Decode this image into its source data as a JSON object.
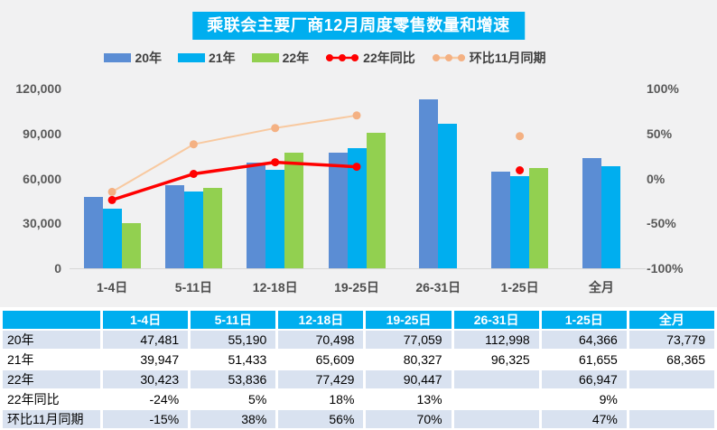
{
  "title": "乘联会主要厂商12月周度零售数量和增速",
  "colors": {
    "chart_bg": "#F1F1F2",
    "blue": "#5B8DD4",
    "cyan": "#00AEEF",
    "green": "#92D050",
    "red": "#FF0000",
    "peach_line": "#F8C9A0",
    "peach_marker": "#F4B183",
    "header_bg": "#00AEEF",
    "stripe": "#D9E2F0",
    "axis_text": "#595959"
  },
  "chart_data": {
    "type": "combo-bar-line",
    "title": "乘联会主要厂商12月周度零售数量和增速",
    "categories": [
      "1-4日",
      "5-11日",
      "12-18日",
      "19-25日",
      "26-31日",
      "1-25日",
      "全月"
    ],
    "bar_series": [
      {
        "name": "20年",
        "color": "blue",
        "values": [
          47481,
          55190,
          70498,
          77059,
          112998,
          64366,
          73779
        ]
      },
      {
        "name": "21年",
        "color": "cyan",
        "values": [
          39947,
          51433,
          65609,
          80327,
          96325,
          61655,
          68365
        ]
      },
      {
        "name": "22年",
        "color": "green",
        "values": [
          30423,
          53836,
          77429,
          90447,
          null,
          66947,
          null
        ]
      }
    ],
    "line_series": [
      {
        "name": "22年同比",
        "color": "red",
        "axis": "percent",
        "values_pct": [
          -24,
          5,
          18,
          13,
          null,
          9,
          null
        ]
      },
      {
        "name": "环比11月同期",
        "color": "peach",
        "axis": "percent",
        "values_pct": [
          -15,
          38,
          56,
          70,
          null,
          47,
          null
        ]
      }
    ],
    "left_axis": {
      "min": 0,
      "max": 120000,
      "ticks": [
        {
          "v": 0,
          "label": "0"
        },
        {
          "v": 30000,
          "label": "30,000"
        },
        {
          "v": 60000,
          "label": "60,000"
        },
        {
          "v": 90000,
          "label": "90,000"
        },
        {
          "v": 120000,
          "label": "120,000"
        }
      ]
    },
    "right_axis": {
      "min": -100,
      "max": 100,
      "ticks": [
        {
          "v": -100,
          "label": "-100%"
        },
        {
          "v": -50,
          "label": "-50%"
        },
        {
          "v": 0,
          "label": "0%"
        },
        {
          "v": 50,
          "label": "50%"
        },
        {
          "v": 100,
          "label": "100%"
        }
      ]
    },
    "legend": [
      {
        "label": "20年",
        "type": "bar",
        "color": "blue"
      },
      {
        "label": "21年",
        "type": "bar",
        "color": "cyan"
      },
      {
        "label": "22年",
        "type": "bar",
        "color": "green"
      },
      {
        "label": "22年同比",
        "type": "line",
        "color": "red"
      },
      {
        "label": "环比11月同期",
        "type": "line",
        "color": "peach"
      }
    ],
    "legend_position": "top",
    "grid": false
  },
  "table": {
    "header": [
      "",
      "1-4日",
      "5-11日",
      "12-18日",
      "19-25日",
      "26-31日",
      "1-25日",
      "全月"
    ],
    "rows": [
      {
        "label": "20年",
        "values": [
          "47,481",
          "55,190",
          "70,498",
          "77,059",
          "112,998",
          "64,366",
          "73,779"
        ]
      },
      {
        "label": "21年",
        "values": [
          "39,947",
          "51,433",
          "65,609",
          "80,327",
          "96,325",
          "61,655",
          "68,365"
        ]
      },
      {
        "label": "22年",
        "values": [
          "30,423",
          "53,836",
          "77,429",
          "90,447",
          "",
          "66,947",
          ""
        ]
      },
      {
        "label": "22年同比",
        "values": [
          "-24%",
          "5%",
          "18%",
          "13%",
          "",
          "9%",
          ""
        ]
      },
      {
        "label": "环比11月同期",
        "values": [
          "-15%",
          "38%",
          "56%",
          "70%",
          "",
          "47%",
          ""
        ]
      }
    ]
  }
}
